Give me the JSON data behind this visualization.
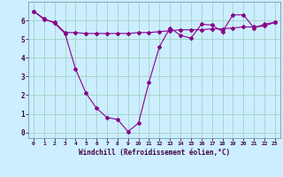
{
  "line1_x": [
    0,
    1,
    2,
    3,
    4,
    5,
    6,
    7,
    8,
    9,
    10,
    11,
    12,
    13,
    14,
    15,
    16,
    17,
    18,
    19,
    20,
    21,
    22,
    23
  ],
  "line1_y": [
    6.5,
    6.1,
    5.85,
    5.3,
    3.4,
    2.1,
    1.3,
    0.8,
    0.7,
    0.05,
    0.5,
    2.7,
    4.6,
    5.6,
    5.2,
    5.05,
    5.8,
    5.75,
    5.4,
    6.3,
    6.3,
    5.6,
    5.8,
    5.9
  ],
  "line2_x": [
    0,
    1,
    2,
    3,
    4,
    5,
    6,
    7,
    8,
    9,
    10,
    11,
    12,
    13,
    14,
    15,
    16,
    17,
    18,
    19,
    20,
    21,
    22,
    23
  ],
  "line2_y": [
    6.5,
    6.05,
    5.9,
    5.35,
    5.35,
    5.3,
    5.3,
    5.3,
    5.3,
    5.3,
    5.35,
    5.35,
    5.4,
    5.45,
    5.5,
    5.5,
    5.5,
    5.55,
    5.55,
    5.6,
    5.65,
    5.65,
    5.7,
    5.9
  ],
  "line_color": "#880088",
  "bg_color": "#cceeff",
  "grid_color": "#99ccbb",
  "xlabel": "Windchill (Refroidissement éolien,°C)",
  "ylim": [
    -0.3,
    7.0
  ],
  "xlim": [
    -0.5,
    23.5
  ],
  "yticks": [
    0,
    1,
    2,
    3,
    4,
    5,
    6
  ],
  "xticks": [
    0,
    1,
    2,
    3,
    4,
    5,
    6,
    7,
    8,
    9,
    10,
    11,
    12,
    13,
    14,
    15,
    16,
    17,
    18,
    19,
    20,
    21,
    22,
    23
  ]
}
